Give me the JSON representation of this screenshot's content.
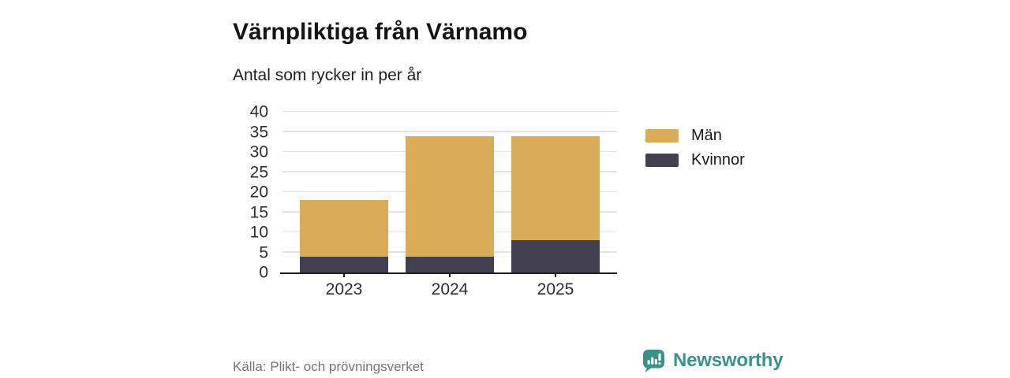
{
  "header": {
    "title": "Värnpliktiga från Värnamo",
    "subtitle": "Antal som rycker in per år"
  },
  "chart_data": {
    "type": "bar",
    "stacked": true,
    "title": "Värnpliktiga från Värnamo",
    "subtitle": "Antal som rycker in per år",
    "categories": [
      "2023",
      "2024",
      "2025"
    ],
    "series": [
      {
        "name": "Män",
        "color": "#dbac58",
        "values": [
          14,
          30,
          26
        ]
      },
      {
        "name": "Kvinnor",
        "color": "#42404f",
        "values": [
          4,
          4,
          8
        ]
      }
    ],
    "stack_bottom_to_top": [
      "Kvinnor",
      "Män"
    ],
    "totals": [
      18,
      34,
      34
    ],
    "xlabel": "",
    "ylabel": "",
    "ylim": [
      0,
      40
    ],
    "yticks": [
      0,
      5,
      10,
      15,
      20,
      25,
      30,
      35,
      40
    ],
    "grid": "horizontal",
    "legend_position": "right"
  },
  "footer": {
    "source": "Källa: Plikt- och prövningsverket",
    "brand": "Newsworthy"
  },
  "colors": {
    "men": "#dbac58",
    "women": "#42404f",
    "brand_teal": "#39938b",
    "gridline": "#e4e4e4",
    "axis": "#1f1f1f",
    "source_text": "#767676"
  }
}
